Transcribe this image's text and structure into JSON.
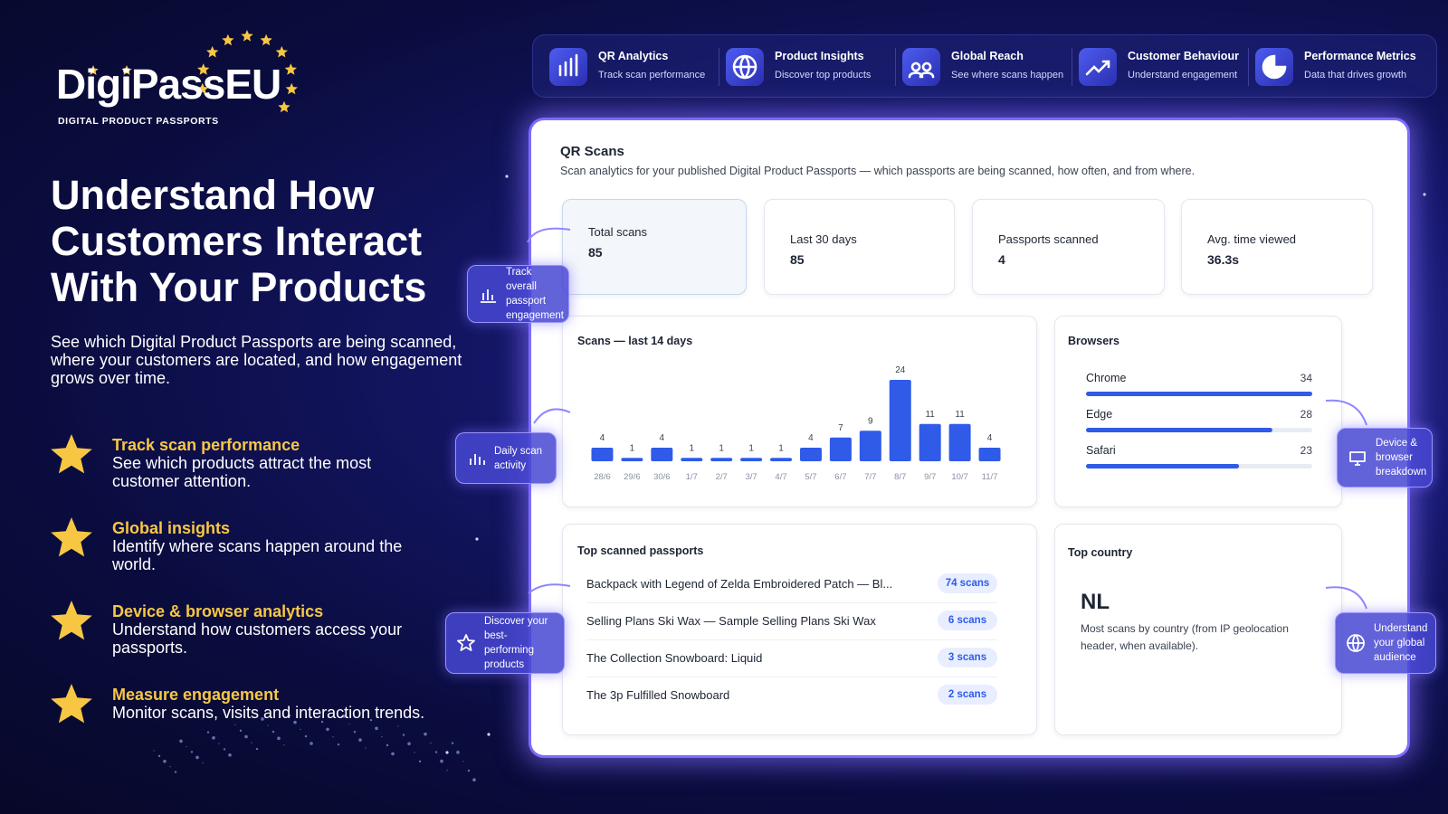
{
  "brand": {
    "name": "DigiPass",
    "suffix": "EU",
    "tagline": "DIGITAL PRODUCT PASSPORTS"
  },
  "hero": {
    "headline": "Understand How Customers Interact With Your Products",
    "intro": "See which Digital Product Passports are being scanned, where your customers are located, and how engagement grows over time."
  },
  "features": [
    {
      "title": "Track scan performance",
      "text": "See which products attract the most customer attention."
    },
    {
      "title": "Global insights",
      "text": "Identify where scans happen around the world."
    },
    {
      "title": "Device & browser analytics",
      "text": "Understand how customers access your passports."
    },
    {
      "title": "Measure engagement",
      "text": "Monitor scans, visits and interaction trends."
    }
  ],
  "nav": [
    {
      "title": "QR Analytics",
      "subtitle": "Track scan performance"
    },
    {
      "title": "Product Insights",
      "subtitle": "Discover top products"
    },
    {
      "title": "Global Reach",
      "subtitle": "See where scans happen"
    },
    {
      "title": "Customer Behaviour",
      "subtitle": "Understand engagement"
    },
    {
      "title": "Performance Metrics",
      "subtitle": "Data that drives growth"
    }
  ],
  "dashboard": {
    "title": "QR Scans",
    "subtitle": "Scan analytics for your published Digital Product Passports — which passports are being scanned, how often, and from where.",
    "stats": [
      {
        "label": "Total scans",
        "value": 85
      },
      {
        "label": "Last 30 days",
        "value": 85
      },
      {
        "label": "Passports scanned",
        "value": 4
      },
      {
        "label": "Avg. time viewed",
        "value": "36.3s"
      }
    ],
    "scans_chart": {
      "type": "bar",
      "title": "Scans — last 14 days",
      "categories": [
        "28/6",
        "29/6",
        "30/6",
        "1/7",
        "2/7",
        "3/7",
        "4/7",
        "5/7",
        "6/7",
        "7/7",
        "8/7",
        "9/7",
        "10/7",
        "11/7"
      ],
      "values": [
        4,
        1,
        4,
        1,
        1,
        1,
        1,
        4,
        7,
        9,
        24,
        11,
        11,
        4
      ],
      "color": "#2f5be8"
    },
    "browsers": {
      "title": "Browsers",
      "color": "#2f5be8",
      "items": [
        {
          "name": "Chrome",
          "value": 34
        },
        {
          "name": "Edge",
          "value": 28
        },
        {
          "name": "Safari",
          "value": 23
        }
      ]
    },
    "top_passports": {
      "title": "Top scanned passports",
      "rows": [
        {
          "name": "Backpack with Legend of Zelda Embroidered Patch — Bl...",
          "scans": "74 scans"
        },
        {
          "name": "Selling Plans Ski Wax — Sample Selling Plans Ski Wax",
          "scans": "6 scans"
        },
        {
          "name": "The Collection Snowboard: Liquid",
          "scans": "3 scans"
        },
        {
          "name": "The 3p Fulfilled Snowboard",
          "scans": "2 scans"
        }
      ]
    },
    "top_country": {
      "title": "Top country",
      "code": "NL",
      "note": "Most scans by country (from IP geolocation header, when available)."
    }
  },
  "callouts": [
    "Track overall passport engagement",
    "Daily scan activity",
    "Discover your best-performing products",
    "Device & browser breakdown",
    "Understand your global audience"
  ]
}
